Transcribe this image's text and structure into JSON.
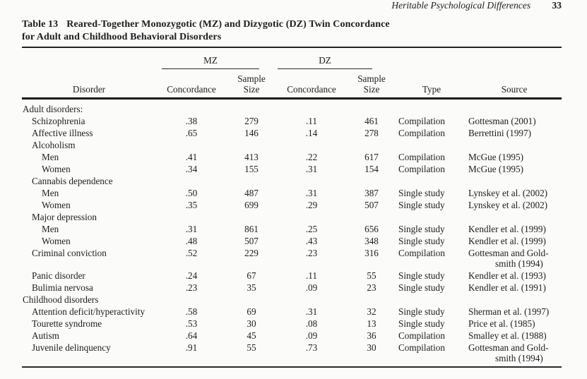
{
  "page": {
    "running_head": "Heritable Psychological Differences",
    "page_number": "33"
  },
  "table": {
    "label": "Table 13",
    "title_line1": "Reared-Together Monozygotic (MZ) and Dizygotic (DZ) Twin Concordance",
    "title_line2": "for Adult and Childhood Behavioral Disorders",
    "spanners": {
      "mz": "MZ",
      "dz": "DZ"
    },
    "headers": {
      "disorder": "Disorder",
      "mz_concordance": "Concordance",
      "mz_sample_size": "Sample\nSize",
      "dz_concordance": "Concordance",
      "dz_sample_size": "Sample\nSize",
      "type": "Type",
      "source": "Source"
    },
    "rows": [
      {
        "disorder": "Adult disorders:",
        "indent": 0,
        "mz_concordance": "",
        "mz_sample_size": "",
        "dz_concordance": "",
        "dz_sample_size": "",
        "type": "",
        "source": ""
      },
      {
        "disorder": "Schizophrenia",
        "indent": 1,
        "mz_concordance": ".38",
        "mz_sample_size": "279",
        "dz_concordance": ".11",
        "dz_sample_size": "461",
        "type": "Compilation",
        "source": "Gottesman (2001)"
      },
      {
        "disorder": "Affective illness",
        "indent": 1,
        "mz_concordance": ".65",
        "mz_sample_size": "146",
        "dz_concordance": ".14",
        "dz_sample_size": "278",
        "type": "Compilation",
        "source": "Berrettini (1997)"
      },
      {
        "disorder": "Alcoholism",
        "indent": 1,
        "mz_concordance": "",
        "mz_sample_size": "",
        "dz_concordance": "",
        "dz_sample_size": "",
        "type": "",
        "source": ""
      },
      {
        "disorder": "Men",
        "indent": 2,
        "mz_concordance": ".41",
        "mz_sample_size": "413",
        "dz_concordance": ".22",
        "dz_sample_size": "617",
        "type": "Compilation",
        "source": "McGue (1995)"
      },
      {
        "disorder": "Women",
        "indent": 2,
        "mz_concordance": ".34",
        "mz_sample_size": "155",
        "dz_concordance": ".31",
        "dz_sample_size": "154",
        "type": "Compilation",
        "source": "McGue (1995)"
      },
      {
        "disorder": "Cannabis dependence",
        "indent": 1,
        "mz_concordance": "",
        "mz_sample_size": "",
        "dz_concordance": "",
        "dz_sample_size": "",
        "type": "",
        "source": ""
      },
      {
        "disorder": "Men",
        "indent": 2,
        "mz_concordance": ".50",
        "mz_sample_size": "487",
        "dz_concordance": ".31",
        "dz_sample_size": "387",
        "type": "Single study",
        "source": "Lynskey et al. (2002)"
      },
      {
        "disorder": "Women",
        "indent": 2,
        "mz_concordance": ".35",
        "mz_sample_size": "699",
        "dz_concordance": ".29",
        "dz_sample_size": "507",
        "type": "Single study",
        "source": "Lynskey et al. (2002)"
      },
      {
        "disorder": "Major depression",
        "indent": 1,
        "mz_concordance": "",
        "mz_sample_size": "",
        "dz_concordance": "",
        "dz_sample_size": "",
        "type": "",
        "source": ""
      },
      {
        "disorder": "Men",
        "indent": 2,
        "mz_concordance": ".31",
        "mz_sample_size": "861",
        "dz_concordance": ".25",
        "dz_sample_size": "656",
        "type": "Single study",
        "source": "Kendler et al. (1999)"
      },
      {
        "disorder": "Women",
        "indent": 2,
        "mz_concordance": ".48",
        "mz_sample_size": "507",
        "dz_concordance": ".43",
        "dz_sample_size": "348",
        "type": "Single study",
        "source": "Kendler et al. (1999)"
      },
      {
        "disorder": "Criminal conviction",
        "indent": 1,
        "mz_concordance": ".52",
        "mz_sample_size": "229",
        "dz_concordance": ".23",
        "dz_sample_size": "316",
        "type": "Compilation",
        "source": "Gottesman and Gold-",
        "source_line2": "smith (1994)"
      },
      {
        "disorder": "Panic disorder",
        "indent": 1,
        "mz_concordance": ".24",
        "mz_sample_size": "67",
        "dz_concordance": ".11",
        "dz_sample_size": "55",
        "type": "Single study",
        "source": "Kendler et al. (1993)"
      },
      {
        "disorder": "Bulimia nervosa",
        "indent": 1,
        "mz_concordance": ".23",
        "mz_sample_size": "35",
        "dz_concordance": ".09",
        "dz_sample_size": "23",
        "type": "Single study",
        "source": "Kendler et al. (1991)"
      },
      {
        "disorder": "Childhood disorders",
        "indent": 0,
        "mz_concordance": "",
        "mz_sample_size": "",
        "dz_concordance": "",
        "dz_sample_size": "",
        "type": "",
        "source": ""
      },
      {
        "disorder": "Attention deficit/hyperactivity",
        "indent": 1,
        "mz_concordance": ".58",
        "mz_sample_size": "69",
        "dz_concordance": ".31",
        "dz_sample_size": "32",
        "type": "Single study",
        "source": "Sherman et al. (1997)"
      },
      {
        "disorder": "Tourette syndrome",
        "indent": 1,
        "mz_concordance": ".53",
        "mz_sample_size": "30",
        "dz_concordance": ".08",
        "dz_sample_size": "13",
        "type": "Single study",
        "source": "Price et al. (1985)"
      },
      {
        "disorder": "Autism",
        "indent": 1,
        "mz_concordance": ".64",
        "mz_sample_size": "45",
        "dz_concordance": ".09",
        "dz_sample_size": "36",
        "type": "Compilation",
        "source": "Smalley et al. (1988)"
      },
      {
        "disorder": "Juvenile delinquency",
        "indent": 1,
        "mz_concordance": ".91",
        "mz_sample_size": "55",
        "dz_concordance": ".73",
        "dz_sample_size": "30",
        "type": "Compilation",
        "source": "Gottesman and Gold-",
        "source_line2": "smith (1994)"
      }
    ]
  }
}
